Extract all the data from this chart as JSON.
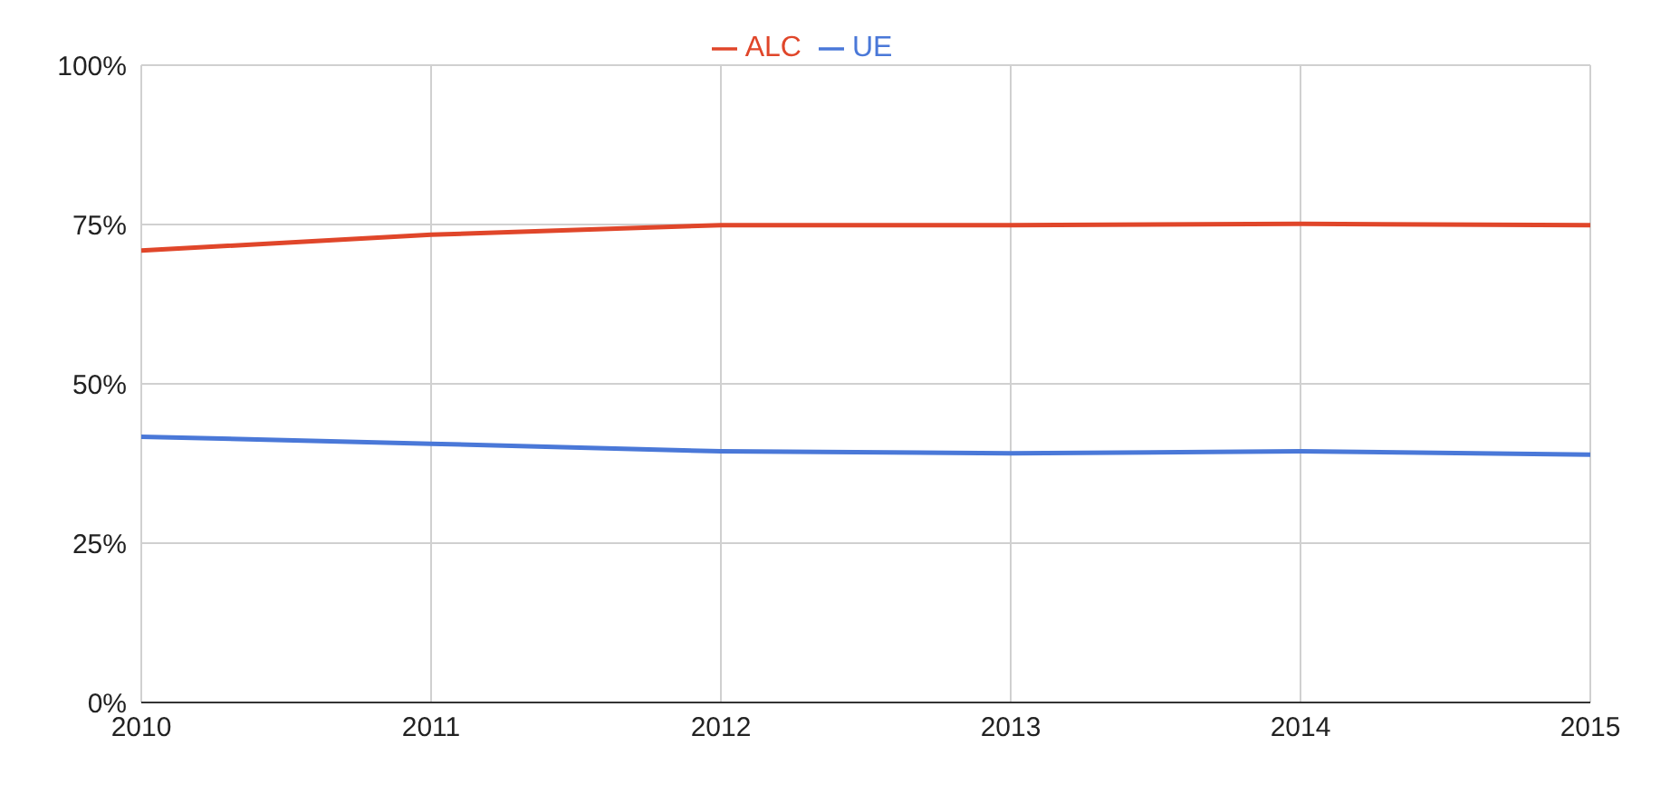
{
  "chart_data": {
    "type": "line",
    "x": [
      2010,
      2011,
      2012,
      2013,
      2014,
      2015
    ],
    "series": [
      {
        "name": "UE",
        "color": "#4a78d8",
        "values": [
          41.7,
          40.6,
          39.4,
          39.1,
          39.4,
          38.9
        ]
      },
      {
        "name": "ALC",
        "color": "#e0462a",
        "values": [
          70.9,
          73.4,
          74.9,
          74.9,
          75.1,
          74.9
        ]
      }
    ],
    "xlim": [
      2010,
      2015
    ],
    "xticks": [
      2010,
      2011,
      2012,
      2013,
      2014,
      2015
    ],
    "ylim": [
      0,
      100
    ],
    "yticks": [
      {
        "value": 0,
        "label": "0%"
      },
      {
        "value": 25,
        "label": "25%"
      },
      {
        "value": 50,
        "label": "50%"
      },
      {
        "value": 75,
        "label": "75%"
      },
      {
        "value": 100,
        "label": "100%"
      }
    ],
    "grid": true,
    "legend": "top",
    "marker": "none",
    "line_style": "solid"
  }
}
